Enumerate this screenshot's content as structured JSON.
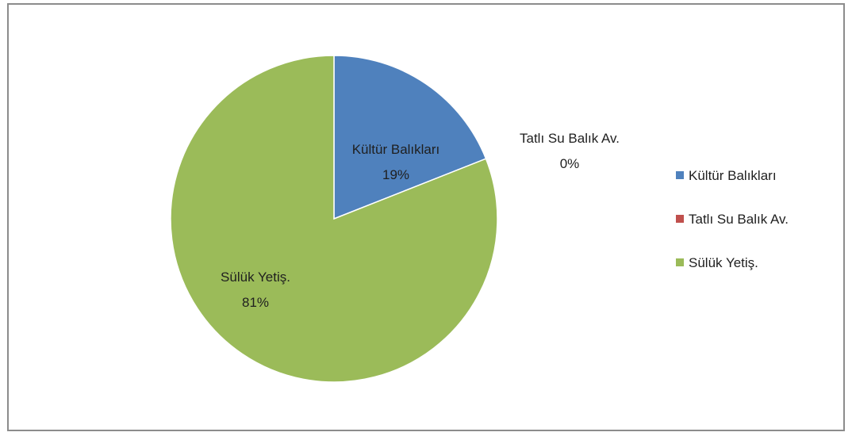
{
  "chart_data": {
    "type": "pie",
    "title": "",
    "categories": [
      "Kültür Balıkları",
      "Tatlı Su Balık Av.",
      "Sülük Yetiş."
    ],
    "values": [
      19,
      0,
      81
    ],
    "value_unit": "%",
    "data_labels": [
      {
        "name": "Kültür Balıkları",
        "value": "19%"
      },
      {
        "name": "Tatlı Su Balık Av.",
        "value": "0%"
      },
      {
        "name": "Sülük Yetiş.",
        "value": "81%"
      }
    ],
    "colors": [
      "#4f81bd",
      "#c0504d",
      "#9bbb59"
    ],
    "legend": {
      "position": "right",
      "items": [
        "Kültür Balıkları",
        "Tatlı Su Balık Av.",
        "Sülük Yetiş."
      ]
    },
    "start_angle": "12 o'clock",
    "direction": "clockwise"
  }
}
